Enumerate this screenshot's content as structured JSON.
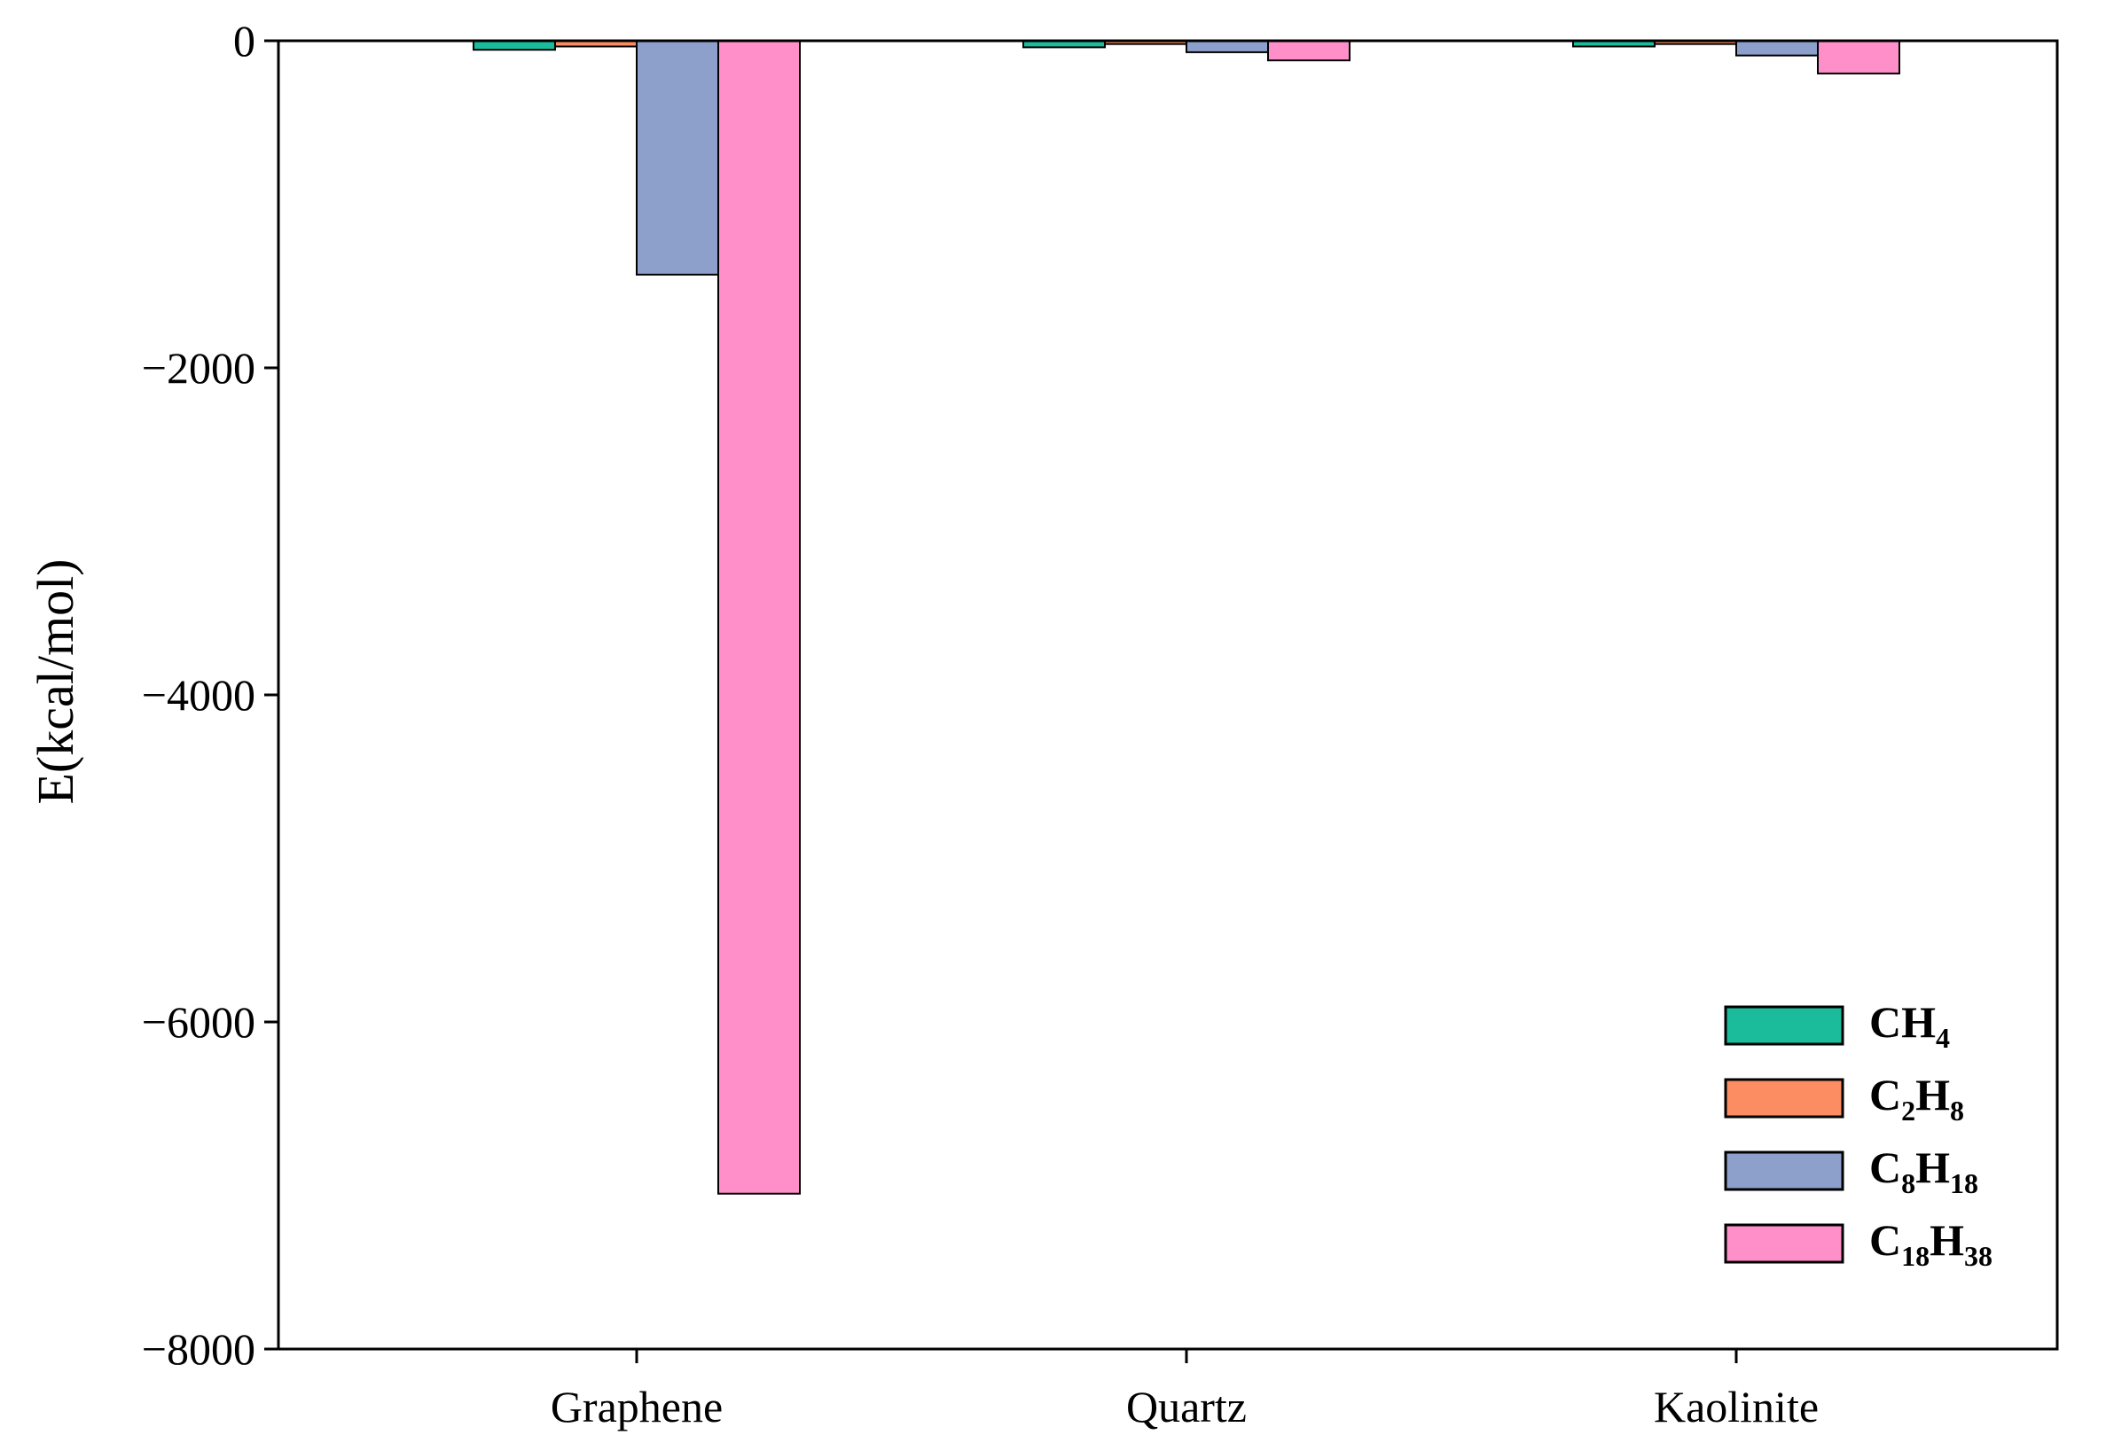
{
  "chart_data": {
    "type": "bar",
    "title": "",
    "xlabel": "",
    "ylabel": "E(kcal/mol)",
    "ylim": [
      -8000,
      0
    ],
    "yticks": [
      0,
      -2000,
      -4000,
      -6000,
      -8000
    ],
    "ytick_labels": [
      "0",
      "−2000",
      "−4000",
      "−6000",
      "−8000"
    ],
    "categories": [
      "Graphene",
      "Quartz",
      "Kaolinite"
    ],
    "series": [
      {
        "name": "CH4",
        "label_parts": [
          "C",
          "H",
          "4"
        ],
        "color": "#1abc9c",
        "values": [
          -55,
          -40,
          -35
        ]
      },
      {
        "name": "C2H8",
        "label_parts": [
          "C",
          "2",
          "H",
          "8"
        ],
        "color": "#fc8d62",
        "values": [
          -35,
          -20,
          -20
        ]
      },
      {
        "name": "C8H18",
        "label_parts": [
          "C",
          "8",
          "H",
          "18"
        ],
        "color": "#8da0cb",
        "values": [
          -1430,
          -70,
          -90
        ]
      },
      {
        "name": "C18H38",
        "label_parts": [
          "C",
          "18",
          "H",
          "38"
        ],
        "color": "#ff8fc8",
        "values": [
          -7050,
          -120,
          -200
        ]
      }
    ],
    "legend_position": "bottom-right",
    "grid": false
  }
}
